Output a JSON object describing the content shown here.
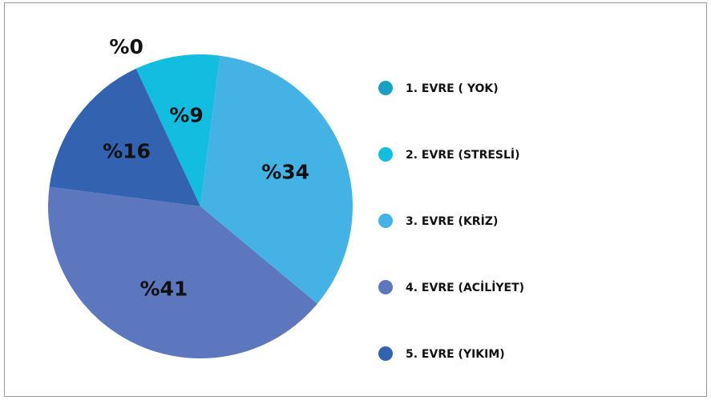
{
  "chart_data": {
    "type": "pie",
    "categories": [
      "1. EVRE ( YOK)",
      "2. EVRE (STRESLİ)",
      "3. EVRE (KRİZ)",
      "4. EVRE (ACİLİYET)",
      "5. EVRE (YIKIM)"
    ],
    "values": [
      0,
      9,
      34,
      41,
      16
    ],
    "value_labels": [
      "%0",
      "%9",
      "%34",
      "%41",
      "%16"
    ],
    "colors": [
      "#1a9fc0",
      "#12bde0",
      "#45b2e6",
      "#5d77bf",
      "#3362b0"
    ],
    "legend": "right"
  }
}
